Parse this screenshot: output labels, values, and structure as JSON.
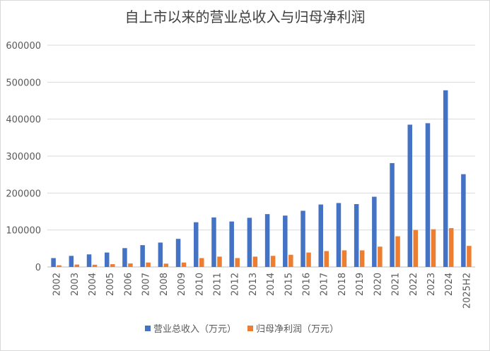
{
  "chart_data": {
    "type": "bar",
    "title": "自上市以来的营业总收入与归母净利润",
    "xlabel": "",
    "ylabel": "",
    "ylim": [
      0,
      600000
    ],
    "yticks": [
      0,
      100000,
      200000,
      300000,
      400000,
      500000,
      600000
    ],
    "ytick_labels": [
      "0",
      "100000",
      "200000",
      "300000",
      "400000",
      "500000",
      "600000"
    ],
    "grid": true,
    "legend_position": "bottom",
    "categories": [
      "2002",
      "2003",
      "2004",
      "2005",
      "2006",
      "2007",
      "2008",
      "2009",
      "2010",
      "2011",
      "2012",
      "2013",
      "2014",
      "2015",
      "2016",
      "2017",
      "2018",
      "2019",
      "2020",
      "2021",
      "2022",
      "2023",
      "2024",
      "2025H2"
    ],
    "series": [
      {
        "name": "营业总收入（万元）",
        "color": "#4472C4",
        "values": [
          24000,
          30000,
          34000,
          39000,
          51000,
          59000,
          66000,
          76000,
          121000,
          134000,
          123000,
          133000,
          143000,
          139000,
          152000,
          169000,
          173000,
          170000,
          190000,
          281000,
          385000,
          389000,
          478000,
          251000
        ]
      },
      {
        "name": "归母净利润（万元）",
        "color": "#ED7D31",
        "values": [
          4500,
          6500,
          6000,
          7500,
          9500,
          12000,
          9000,
          12000,
          24000,
          28000,
          24000,
          28000,
          30000,
          33000,
          39000,
          43000,
          45000,
          45000,
          55000,
          83000,
          100000,
          102000,
          105000,
          57000
        ]
      }
    ]
  }
}
